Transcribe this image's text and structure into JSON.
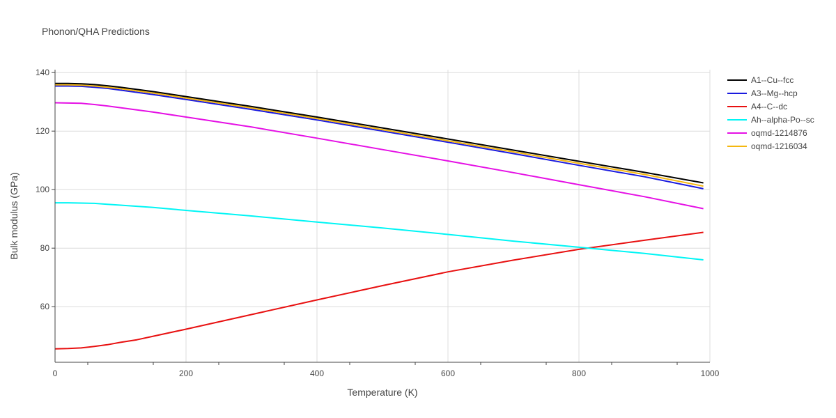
{
  "chart_data": {
    "type": "line",
    "title": "Phonon/QHA Predictions",
    "xlabel": "Temperature (K)",
    "ylabel": "Bulk modulus (GPa)",
    "xlim": [
      0,
      1000
    ],
    "ylim": [
      41,
      141
    ],
    "xticks": [
      0,
      200,
      400,
      600,
      800,
      1000
    ],
    "yticks": [
      60,
      80,
      100,
      120,
      140
    ],
    "grid": true,
    "legend_position": "top-right",
    "series": [
      {
        "name": "A1--Cu--fcc",
        "color": "#000000",
        "x": [
          0,
          20,
          40,
          60,
          80,
          100,
          150,
          200,
          300,
          400,
          500,
          600,
          700,
          800,
          900,
          990
        ],
        "y": [
          136.3,
          136.3,
          136.2,
          135.9,
          135.5,
          135.0,
          133.5,
          131.8,
          128.4,
          124.8,
          121.1,
          117.3,
          113.5,
          109.7,
          105.9,
          102.3
        ]
      },
      {
        "name": "A3--Mg--hcp",
        "color": "#1a1adf",
        "x": [
          0,
          20,
          40,
          60,
          80,
          100,
          150,
          200,
          300,
          400,
          500,
          600,
          700,
          800,
          900,
          990
        ],
        "y": [
          135.4,
          135.4,
          135.3,
          135.0,
          134.6,
          134.0,
          132.5,
          130.8,
          127.4,
          123.8,
          120.0,
          116.2,
          112.3,
          108.3,
          104.4,
          100.3
        ]
      },
      {
        "name": "A4--C--dc",
        "color": "#e81010",
        "x": [
          0,
          20,
          40,
          60,
          80,
          100,
          125,
          150,
          200,
          300,
          400,
          500,
          600,
          700,
          800,
          900,
          990
        ],
        "y": [
          45.6,
          45.7,
          45.9,
          46.4,
          47.0,
          47.8,
          48.7,
          49.9,
          52.3,
          57.3,
          62.3,
          67.2,
          71.9,
          75.9,
          79.6,
          82.7,
          85.4
        ]
      },
      {
        "name": "Ah--alpha-Po--sc",
        "color": "#00f5f5",
        "x": [
          0,
          20,
          40,
          60,
          80,
          100,
          150,
          200,
          300,
          400,
          500,
          600,
          700,
          800,
          900,
          990
        ],
        "y": [
          95.5,
          95.5,
          95.4,
          95.3,
          95.0,
          94.7,
          93.9,
          92.9,
          91.0,
          88.9,
          86.9,
          84.7,
          82.4,
          80.3,
          78.2,
          76.0
        ]
      },
      {
        "name": "oqmd-1214876",
        "color": "#e510e5",
        "x": [
          0,
          20,
          40,
          60,
          80,
          100,
          150,
          200,
          300,
          400,
          500,
          600,
          700,
          800,
          900,
          990
        ],
        "y": [
          129.7,
          129.6,
          129.5,
          129.1,
          128.6,
          128.0,
          126.5,
          124.8,
          121.4,
          117.6,
          113.7,
          109.8,
          105.8,
          101.7,
          97.6,
          93.5
        ]
      },
      {
        "name": "oqmd-1216034",
        "color": "#f5b70f",
        "x": [
          0,
          20,
          40,
          60,
          80,
          100,
          150,
          200,
          300,
          400,
          500,
          600,
          700,
          800,
          900,
          990
        ],
        "y": [
          135.8,
          135.8,
          135.7,
          135.4,
          135.0,
          134.5,
          133.0,
          131.3,
          127.9,
          124.3,
          120.5,
          116.7,
          112.9,
          109.0,
          105.2,
          101.2
        ]
      }
    ]
  }
}
